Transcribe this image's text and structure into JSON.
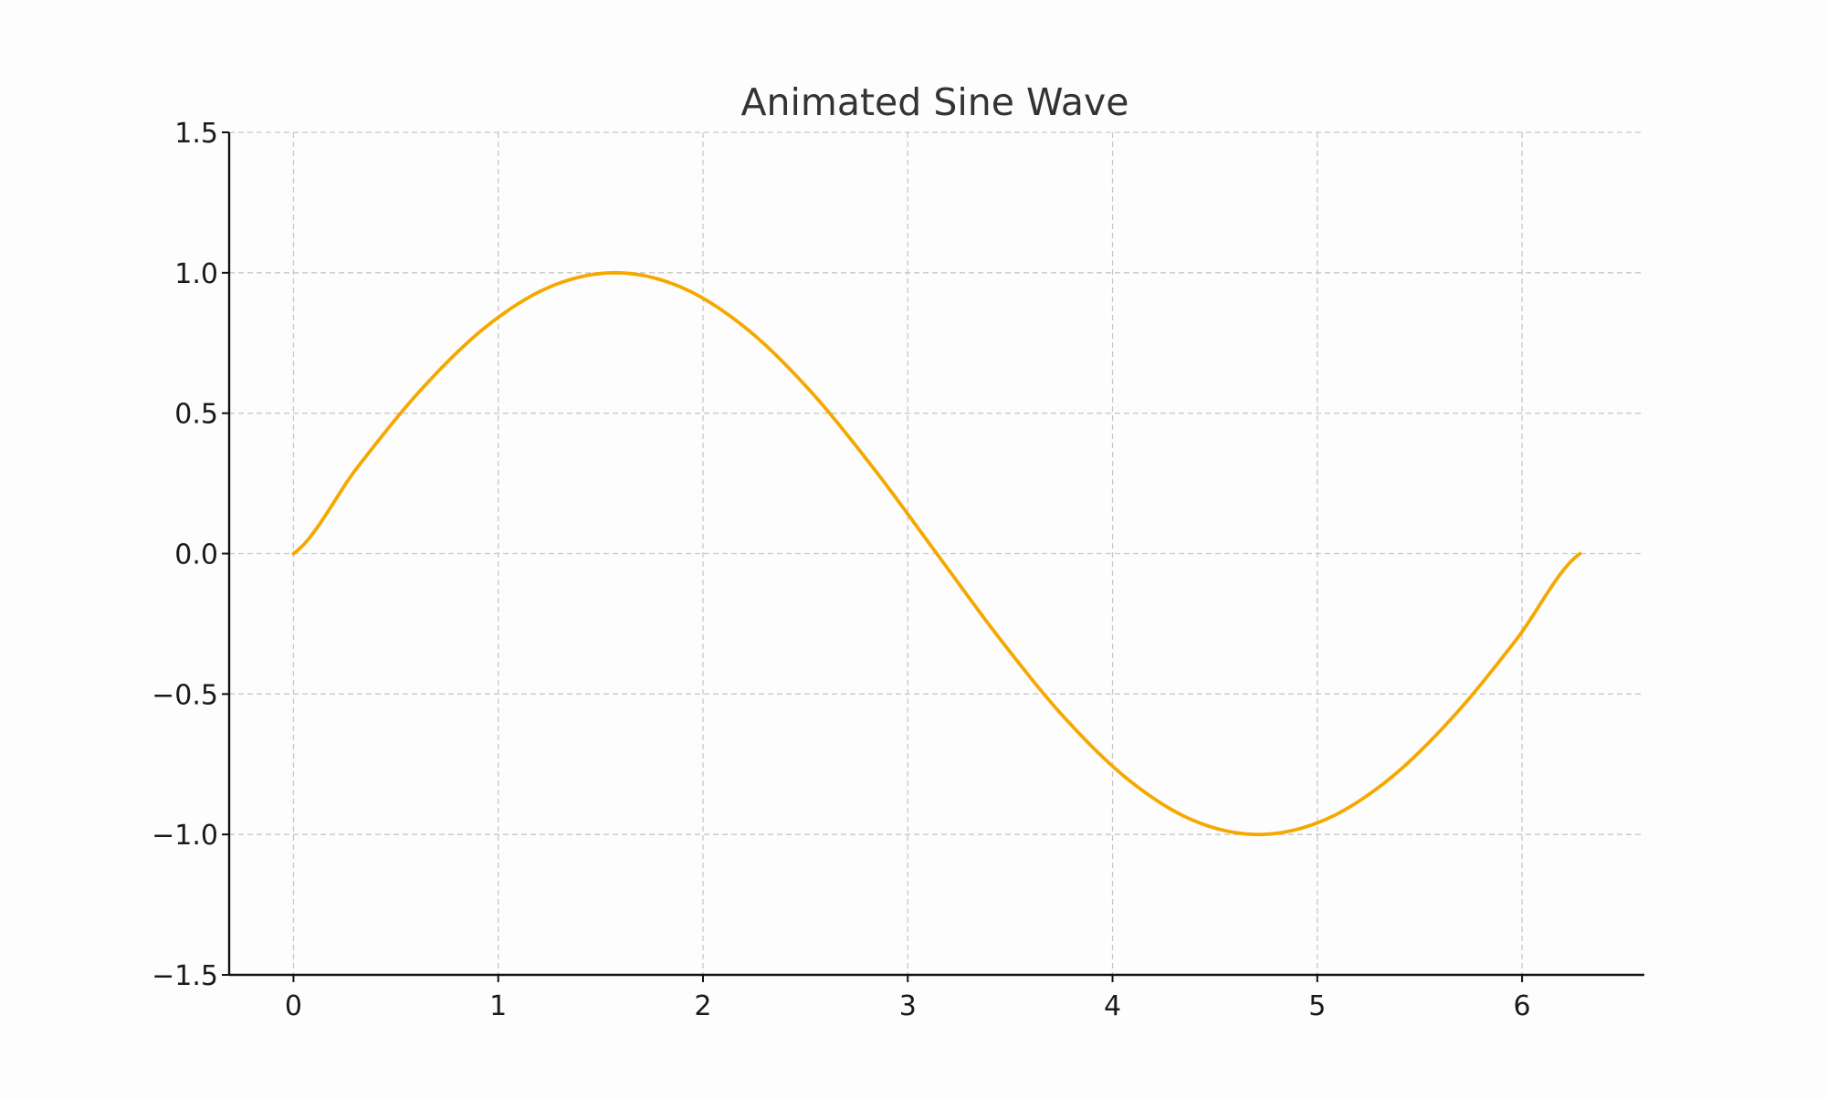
{
  "chart_data": {
    "type": "line",
    "title": "Animated Sine Wave",
    "xlabel": "",
    "ylabel": "",
    "xlim": [
      -0.314,
      6.597
    ],
    "ylim": [
      -1.5,
      1.5
    ],
    "x_ticks": [
      0,
      1,
      2,
      3,
      4,
      5,
      6
    ],
    "x_tick_labels": [
      "0",
      "1",
      "2",
      "3",
      "4",
      "5",
      "6"
    ],
    "y_ticks": [
      -1.5,
      -1.0,
      -0.5,
      0.0,
      0.5,
      1.0,
      1.5
    ],
    "y_tick_labels": [
      "−1.5",
      "−1.0",
      "−0.5",
      "0.0",
      "0.5",
      "1.0",
      "1.5"
    ],
    "grid": true,
    "legend": "none",
    "series": [
      {
        "color": "#f5a800",
        "x": [
          0,
          0.3142,
          0.6283,
          0.9425,
          1.2566,
          1.5708,
          1.885,
          2.1991,
          2.5133,
          2.8274,
          3.1416,
          3.4558,
          3.7699,
          4.0841,
          4.3982,
          4.7124,
          5.0265,
          5.3407,
          5.6549,
          5.969,
          6.2832
        ],
        "y": [
          0.0,
          0.309,
          0.5878,
          0.809,
          0.9511,
          1.0,
          0.9511,
          0.809,
          0.5878,
          0.309,
          0.0,
          -0.309,
          -0.5878,
          -0.809,
          -0.9511,
          -1.0,
          -0.9511,
          -0.809,
          -0.5878,
          -0.309,
          0.0
        ]
      }
    ]
  }
}
